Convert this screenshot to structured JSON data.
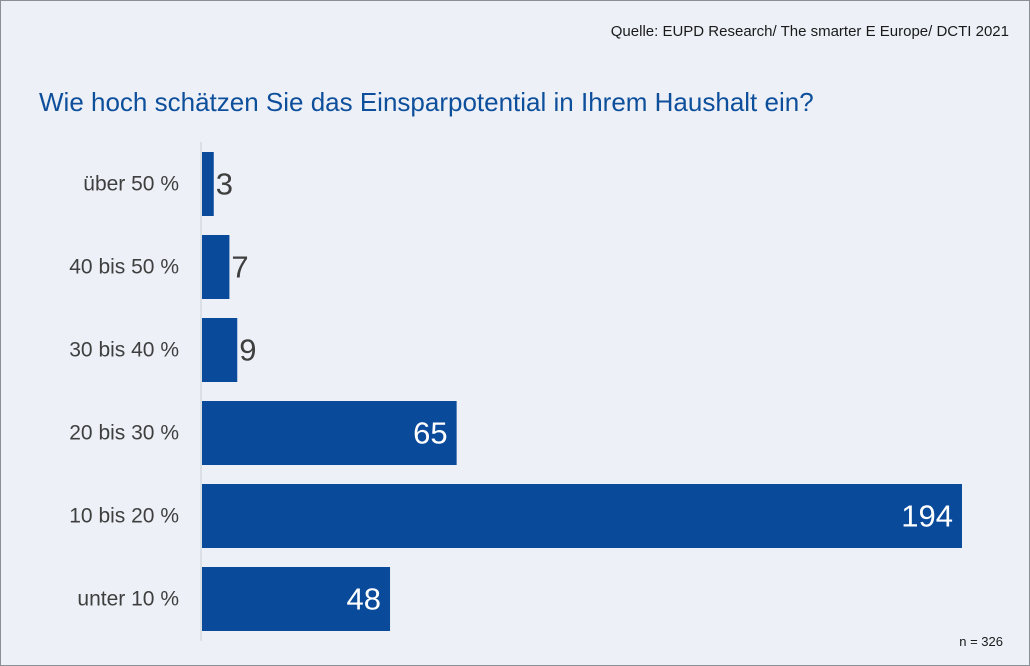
{
  "source": "Quelle: EUPD Research/ The smarter E Europe/ DCTI 2021",
  "title": "Wie hoch schätzen Sie das Einsparpotential in Ihrem Haushalt ein?",
  "sample_size": "n = 326",
  "colors": {
    "bar": "#0a4a9b",
    "background": "#edf1f7",
    "title": "#0e4f9c",
    "axis": "#c9ced6",
    "category_label": "#3f3f3f",
    "value_label_outside": "#3f3f3f",
    "value_label_inside": "#ffffff"
  },
  "chart_data": {
    "type": "bar",
    "orientation": "horizontal",
    "title": "Wie hoch schätzen Sie das Einsparpotential in Ihrem Haushalt ein?",
    "categories": [
      "über 50 %",
      "40 bis 50 %",
      "30 bis 40 %",
      "20 bis 30 %",
      "10 bis 20 %",
      "unter 10 %"
    ],
    "values": [
      3,
      7,
      9,
      65,
      194,
      48
    ],
    "xlim": [
      0,
      194
    ],
    "grid": false,
    "legend": "none",
    "xlabel": "",
    "ylabel": ""
  }
}
